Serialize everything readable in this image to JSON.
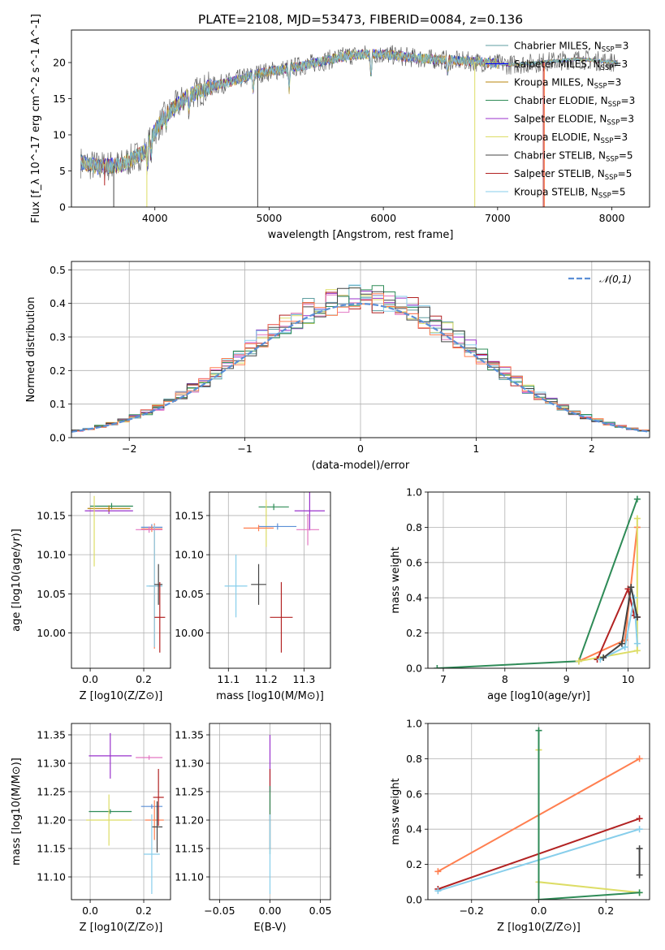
{
  "chart_data": [
    {
      "type": "line",
      "title": "PLATE=2108, MJD=53473, FIBERID=0084, z=0.136",
      "xlabel": "wavelength [Angstrom, rest frame]",
      "ylabel": "Flux [f_λ 10^-17 erg cm^-2 s^-1 A^-1]",
      "xlim": [
        3270,
        8330
      ],
      "ylim": [
        0,
        24.5
      ],
      "xticks": [
        4000,
        5000,
        6000,
        7000,
        8000
      ],
      "yticks": [
        0,
        5,
        10,
        15,
        20
      ],
      "grid": false,
      "legend_position": "top-right",
      "series": [
        {
          "name": "Chabrier MILES, N_SSP=3",
          "color": "#5f9ea0"
        },
        {
          "name": "Salpeter MILES, N_SSP=3",
          "color": "#0000ff"
        },
        {
          "name": "Kroupa MILES, N_SSP=3",
          "color": "#b8860b"
        },
        {
          "name": "Chabrier ELODIE, N_SSP=3",
          "color": "#2e8b57"
        },
        {
          "name": "Salpeter ELODIE, N_SSP=3",
          "color": "#9932cc"
        },
        {
          "name": "Kroupa ELODIE, N_SSP=3",
          "color": "#dddd66"
        },
        {
          "name": "Chabrier STELIB, N_SSP=5",
          "color": "#444444"
        },
        {
          "name": "Salpeter STELIB, N_SSP=5",
          "color": "#b22222"
        },
        {
          "name": "Kroupa STELIB, N_SSP=5",
          "color": "#87ceeb"
        }
      ],
      "continuum": {
        "x": [
          3350,
          3500,
          3700,
          3900,
          4000,
          4100,
          4300,
          4500,
          4700,
          4900,
          5100,
          5300,
          5500,
          5700,
          5900,
          6100,
          6300,
          6500,
          6700,
          6900,
          7100,
          7300,
          7500,
          7700,
          7900,
          8050
        ],
        "y": [
          6.2,
          5.6,
          5.8,
          7.5,
          10.5,
          12.8,
          15.5,
          16.7,
          17.5,
          18.5,
          19.0,
          19.6,
          20.3,
          21.0,
          21.2,
          21.0,
          20.6,
          20.4,
          20.2,
          20.0,
          19.7,
          19.9,
          20.2,
          20.5,
          20.2,
          20.0
        ]
      }
    },
    {
      "type": "area",
      "xlabel": "(data-model)/error",
      "ylabel": "Normed distribution",
      "xlim": [
        -2.5,
        2.5
      ],
      "ylim": [
        0,
        0.525
      ],
      "xticks": [
        -2,
        -1,
        0,
        1,
        2
      ],
      "yticks": [
        0.0,
        0.1,
        0.2,
        0.3,
        0.4,
        0.5
      ],
      "grid": true,
      "legend_position": "top-right",
      "reference": {
        "name": "𝒩(0,1)",
        "color": "#5b8fd6",
        "style": "dashed"
      },
      "bin_width": 0.1
    },
    {
      "type": "scatter",
      "xlabel": "Z [log10(Z/Z⊙)]",
      "ylabel": "age  [log10(age/yr)]",
      "xlim": [
        -0.07,
        0.3
      ],
      "ylim": [
        9.955,
        10.18
      ],
      "xticks": [
        0.0,
        0.2
      ],
      "yticks": [
        10.0,
        10.05,
        10.1,
        10.15
      ],
      "grid": true,
      "points": [
        {
          "x": 0.08,
          "xerr": 0.08,
          "y": 10.162,
          "yerr": 0.004,
          "color": "#2e8b57"
        },
        {
          "x": 0.07,
          "xerr": 0.09,
          "y": 10.156,
          "yerr": 0.004,
          "color": "#9932cc"
        },
        {
          "x": 0.07,
          "xerr": 0.08,
          "y": 10.159,
          "yerr": 0.004,
          "color": "#b8860b"
        },
        {
          "x": 0.015,
          "xerr": 0.0,
          "y": 10.13,
          "yerr": 0.045,
          "color": "#dddd66"
        },
        {
          "x": 0.23,
          "xerr": 0.04,
          "y": 10.135,
          "yerr": 0.004,
          "color": "#5b8fd6"
        },
        {
          "x": 0.23,
          "xerr": 0.04,
          "y": 10.133,
          "yerr": 0.004,
          "color": "#ff7f50"
        },
        {
          "x": 0.24,
          "xerr": 0.02,
          "y": 10.06,
          "yerr": 0.08,
          "color": "#ff7f50"
        },
        {
          "x": 0.24,
          "xerr": 0.03,
          "y": 10.06,
          "yerr": 0.078,
          "color": "#87ceeb"
        },
        {
          "x": 0.255,
          "xerr": 0.015,
          "y": 10.062,
          "yerr": 0.026,
          "color": "#444444"
        },
        {
          "x": 0.26,
          "xerr": 0.02,
          "y": 10.02,
          "yerr": 0.045,
          "color": "#b22222"
        },
        {
          "x": 0.22,
          "xerr": 0.05,
          "y": 10.132,
          "yerr": 0.004,
          "color": "#e377c2"
        }
      ]
    },
    {
      "type": "scatter",
      "xlabel": "mass [log10(M/M⊙)]",
      "ylabel": "",
      "xlim": [
        11.05,
        11.37
      ],
      "ylim": [
        9.955,
        10.18
      ],
      "xticks": [
        11.1,
        11.2,
        11.3
      ],
      "yticks": [
        10.0,
        10.05,
        10.1,
        10.15
      ],
      "grid": true,
      "points": [
        {
          "x": 11.22,
          "xerr": 0.04,
          "y": 10.161,
          "yerr": 0.004,
          "color": "#2e8b57"
        },
        {
          "x": 11.315,
          "xerr": 0.04,
          "y": 10.156,
          "yerr": 0.025,
          "color": "#9932cc"
        },
        {
          "x": 11.2,
          "xerr": 0.0,
          "y": 10.14,
          "yerr": 0.03,
          "color": "#dddd66"
        },
        {
          "x": 11.23,
          "xerr": 0.05,
          "y": 10.136,
          "yerr": 0.004,
          "color": "#5b8fd6"
        },
        {
          "x": 11.18,
          "xerr": 0.04,
          "y": 10.134,
          "yerr": 0.004,
          "color": "#ff7f50"
        },
        {
          "x": 11.31,
          "xerr": 0.03,
          "y": 10.132,
          "yerr": 0.02,
          "color": "#e377c2"
        },
        {
          "x": 11.12,
          "xerr": 0.03,
          "y": 10.06,
          "yerr": 0.04,
          "color": "#87ceeb"
        },
        {
          "x": 11.18,
          "xerr": 0.02,
          "y": 10.062,
          "yerr": 0.026,
          "color": "#444444"
        },
        {
          "x": 11.24,
          "xerr": 0.03,
          "y": 10.02,
          "yerr": 0.045,
          "color": "#b22222"
        }
      ]
    },
    {
      "type": "line",
      "xlabel": "age  [log10(age/yr)]",
      "ylabel": "mass weight",
      "xlim": [
        6.75,
        10.35
      ],
      "ylim": [
        0,
        1.0
      ],
      "xticks": [
        7,
        8,
        9,
        10
      ],
      "yticks": [
        0.0,
        0.2,
        0.4,
        0.6,
        0.8,
        1.0
      ],
      "grid": true,
      "series": [
        {
          "name": "",
          "color": "#2e8b57",
          "x": [
            6.9,
            9.2,
            10.15
          ],
          "y": [
            0.0,
            0.04,
            0.96
          ]
        },
        {
          "name": "",
          "color": "#ff7f50",
          "x": [
            9.2,
            9.95,
            10.15
          ],
          "y": [
            0.04,
            0.16,
            0.8
          ]
        },
        {
          "name": "",
          "color": "#dddd66",
          "x": [
            9.2,
            10.15,
            10.15
          ],
          "y": [
            0.04,
            0.1,
            0.85
          ]
        },
        {
          "name": "",
          "color": "#b22222",
          "x": [
            9.5,
            10.0,
            10.1,
            10.15
          ],
          "y": [
            0.05,
            0.45,
            0.3,
            0.29
          ]
        },
        {
          "name": "",
          "color": "#87ceeb",
          "x": [
            9.55,
            9.95,
            10.1,
            10.15
          ],
          "y": [
            0.05,
            0.12,
            0.4,
            0.14
          ]
        },
        {
          "name": "",
          "color": "#444444",
          "x": [
            9.6,
            9.9,
            10.05,
            10.15
          ],
          "y": [
            0.06,
            0.14,
            0.46,
            0.29
          ]
        }
      ]
    },
    {
      "type": "scatter",
      "xlabel": "Z [log10(Z/Z⊙)]",
      "ylabel": "mass [log10(M/M⊙)]",
      "xlim": [
        -0.07,
        0.3
      ],
      "ylim": [
        11.06,
        11.37
      ],
      "xticks": [
        0.0,
        0.2
      ],
      "yticks": [
        11.1,
        11.15,
        11.2,
        11.25,
        11.3,
        11.35
      ],
      "grid": true,
      "points": [
        {
          "x": 0.075,
          "xerr": 0.08,
          "y": 11.313,
          "yerr": 0.04,
          "color": "#9932cc"
        },
        {
          "x": 0.22,
          "xerr": 0.05,
          "y": 11.31,
          "yerr": 0.004,
          "color": "#e377c2"
        },
        {
          "x": 0.075,
          "xerr": 0.08,
          "y": 11.215,
          "yerr": 0.004,
          "color": "#2e8b57"
        },
        {
          "x": 0.07,
          "xerr": 0.085,
          "y": 11.2,
          "yerr": 0.045,
          "color": "#dddd66"
        },
        {
          "x": 0.23,
          "xerr": 0.04,
          "y": 11.224,
          "yerr": 0.004,
          "color": "#5b8fd6"
        },
        {
          "x": 0.24,
          "xerr": 0.035,
          "y": 11.2,
          "yerr": 0.035,
          "color": "#ff7f50"
        },
        {
          "x": 0.255,
          "xerr": 0.02,
          "y": 11.24,
          "yerr": 0.05,
          "color": "#b22222"
        },
        {
          "x": 0.25,
          "xerr": 0.02,
          "y": 11.188,
          "yerr": 0.045,
          "color": "#444444"
        },
        {
          "x": 0.23,
          "xerr": 0.03,
          "y": 11.14,
          "yerr": 0.07,
          "color": "#87ceeb"
        }
      ]
    },
    {
      "type": "scatter",
      "xlabel": "E(B-V)",
      "ylabel": "",
      "xlim": [
        -0.06,
        0.06
      ],
      "ylim": [
        11.06,
        11.37
      ],
      "xticks": [
        -0.05,
        0.0,
        0.05
      ],
      "yticks": [
        11.1,
        11.15,
        11.2,
        11.25,
        11.3,
        11.35
      ],
      "grid": true,
      "points": [
        {
          "x": 0.0,
          "xerr": 0.0,
          "y": 11.3,
          "yerr": 0.05,
          "color": "#9932cc"
        },
        {
          "x": 0.0,
          "xerr": 0.0,
          "y": 11.22,
          "yerr": 0.07,
          "color": "#b22222"
        },
        {
          "x": 0.0,
          "xerr": 0.0,
          "y": 11.2,
          "yerr": 0.06,
          "color": "#2e8b57"
        },
        {
          "x": 0.0,
          "xerr": 0.0,
          "y": 11.14,
          "yerr": 0.07,
          "color": "#87ceeb"
        }
      ]
    },
    {
      "type": "line",
      "xlabel": "Z [log10(Z/Z⊙)]",
      "ylabel": "mass weight",
      "xlim": [
        -0.33,
        0.33
      ],
      "ylim": [
        0,
        1.0
      ],
      "xticks": [
        -0.2,
        0.0,
        0.2
      ],
      "yticks": [
        0.0,
        0.2,
        0.4,
        0.6,
        0.8,
        1.0
      ],
      "grid": true,
      "series": [
        {
          "name": "",
          "color": "#ff7f50",
          "x": [
            -0.3,
            0.3
          ],
          "y": [
            0.16,
            0.8
          ]
        },
        {
          "name": "",
          "color": "#b22222",
          "x": [
            -0.3,
            0.3
          ],
          "y": [
            0.06,
            0.46
          ]
        },
        {
          "name": "",
          "color": "#87ceeb",
          "x": [
            -0.3,
            0.3
          ],
          "y": [
            0.05,
            0.4
          ]
        },
        {
          "name": "",
          "color": "#dddd66",
          "x": [
            0.0,
            0.0,
            0.3
          ],
          "y": [
            0.85,
            0.1,
            0.04
          ]
        },
        {
          "name": "",
          "color": "#2e8b57",
          "x": [
            0.0,
            0.0,
            0.3
          ],
          "y": [
            0.96,
            0.0,
            0.04
          ]
        },
        {
          "name": "",
          "color": "#444444",
          "x": [
            0.3,
            0.3
          ],
          "y": [
            0.14,
            0.29
          ]
        }
      ]
    }
  ]
}
